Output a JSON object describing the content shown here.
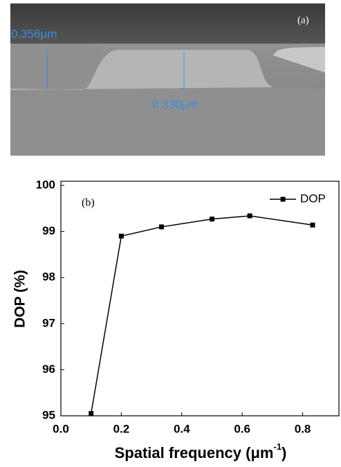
{
  "image_panel": {
    "panel_label": "(a)",
    "height_left": "0.356μm",
    "height_right": "0.330μm"
  },
  "chart_data": {
    "type": "line",
    "panel_label": "(b)",
    "xlabel_parts": [
      "Spatial frequency (μm",
      "-1",
      ")"
    ],
    "ylabel": "DOP (%)",
    "x": [
      0.1,
      0.2,
      0.333,
      0.5,
      0.625,
      0.833
    ],
    "series": [
      {
        "name": "DOP",
        "color": "#000000",
        "values": [
          95.05,
          98.9,
          99.1,
          99.27,
          99.34,
          99.14
        ]
      }
    ],
    "xlim": [
      0,
      0.92
    ],
    "xticks": [
      {
        "value": 0,
        "label": "0.0"
      },
      0.2,
      0.4,
      0.6,
      0.8
    ],
    "ylim": [
      95,
      100
    ],
    "yticks": [
      95,
      96,
      97,
      98,
      99,
      100
    ],
    "legend": "top-right",
    "grid": false
  }
}
